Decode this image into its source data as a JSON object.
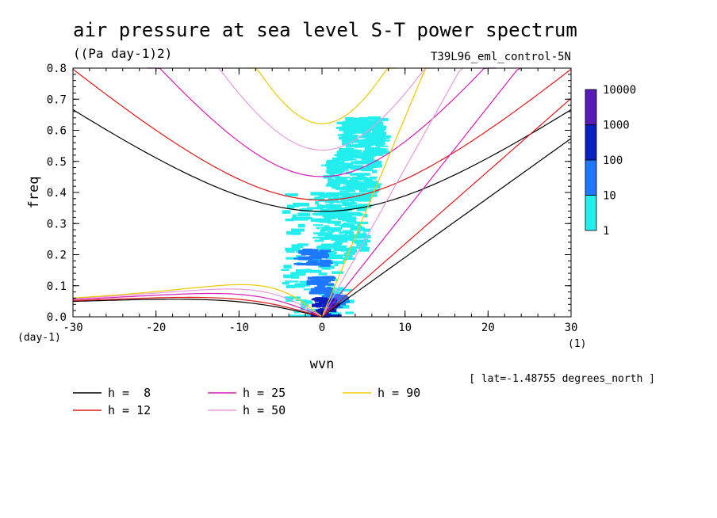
{
  "chart_data": {
    "type": "heatmap",
    "title": "air pressure at sea level S-T power spectrum",
    "subtitle": "((Pa day-1)2)",
    "run_label": "T39L96_eml_control-5N",
    "xlabel": "wvn",
    "ylabel": "freq",
    "x_unit": "(1)",
    "y_unit": "(day-1)",
    "xlim": [
      -30,
      30
    ],
    "ylim": [
      0,
      0.8
    ],
    "x_ticks": [
      -30,
      -20,
      -10,
      0,
      10,
      20,
      30
    ],
    "x_tick_labels": [
      "-30",
      "-20",
      "-10",
      "0",
      "10",
      "20",
      "30"
    ],
    "y_ticks": [
      0,
      0.1,
      0.2,
      0.3,
      0.4,
      0.5,
      0.6,
      0.7,
      0.8
    ],
    "y_tick_labels": [
      "0.0",
      "0.1",
      "0.2",
      "0.3",
      "0.4",
      "0.5",
      "0.6",
      "0.7",
      "0.8"
    ],
    "annotation": "[ lat=-1.48755 degrees_north ]",
    "colorbar": {
      "levels": [
        1,
        10,
        100,
        1000,
        10000
      ],
      "level_labels": [
        "1",
        "10",
        "100",
        "1000",
        "10000"
      ],
      "colors": [
        "#22eeee",
        "#1e78ff",
        "#0a1fc0",
        "#5a1ab8"
      ]
    },
    "power_patches": [
      {
        "k": 0.5,
        "f": 0.03,
        "dk": 2.5,
        "df": 0.06,
        "level": 3
      },
      {
        "k": 0.0,
        "f": 0.1,
        "dk": 2.0,
        "df": 0.06,
        "level": 2
      },
      {
        "k": -1.0,
        "f": 0.19,
        "dk": 3.0,
        "df": 0.05,
        "level": 2
      },
      {
        "k": 1.5,
        "f": 0.05,
        "dk": 2.0,
        "df": 0.04,
        "level": 2
      },
      {
        "k": -0.5,
        "f": 0.2,
        "dk": 8.0,
        "df": 0.4,
        "level": 1
      },
      {
        "k": 2.5,
        "f": 0.3,
        "dk": 6.0,
        "df": 0.2,
        "level": 1
      },
      {
        "k": 3.5,
        "f": 0.45,
        "dk": 6.0,
        "df": 0.15,
        "level": 1
      },
      {
        "k": 5.0,
        "f": 0.58,
        "dk": 5.0,
        "df": 0.12,
        "level": 1
      }
    ],
    "curves": [
      {
        "name": "h =  8",
        "h": 8,
        "color": "#000000"
      },
      {
        "name": "h = 12",
        "h": 12,
        "color": "#e01818"
      },
      {
        "name": "h = 25",
        "h": 25,
        "color": "#d81ab8"
      },
      {
        "name": "h = 50",
        "h": 50,
        "color": "#e89ae0"
      },
      {
        "name": "h = 90",
        "h": 90,
        "color": "#f0c800"
      }
    ]
  }
}
